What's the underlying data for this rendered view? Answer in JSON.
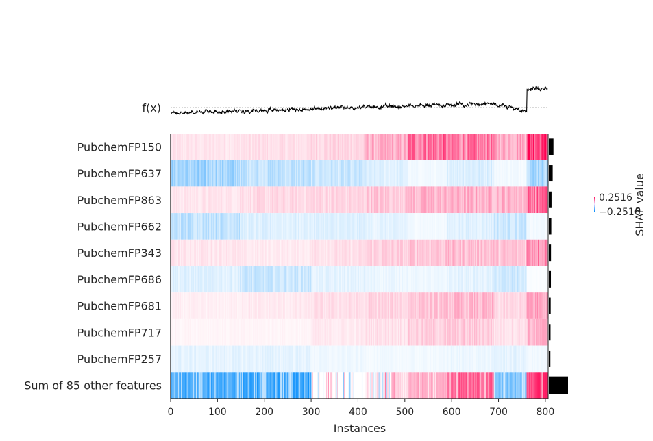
{
  "chart_data": {
    "type": "heatmap",
    "title": "",
    "xlabel": "Instances",
    "ylabel": "",
    "xlim": [
      0,
      806
    ],
    "xticks": [
      "0",
      "100",
      "200",
      "300",
      "400",
      "500",
      "600",
      "700",
      "800"
    ],
    "fx_label": "f(x)",
    "features": [
      "PubchemFP150",
      "PubchemFP637",
      "PubchemFP863",
      "PubchemFP662",
      "PubchemFP343",
      "PubchemFP686",
      "PubchemFP681",
      "PubchemFP717",
      "PubchemFP257",
      "Sum of 85 other features"
    ],
    "mean_abs_shap": [
      0.06,
      0.05,
      0.035,
      0.032,
      0.028,
      0.027,
      0.024,
      0.022,
      0.02,
      0.25
    ],
    "colorbar": {
      "label": "SHAP value",
      "max_label": "0.2516",
      "min_label": "−0.2516",
      "vmin": -0.2516,
      "vmax": 0.2516
    },
    "colors": {
      "positive": "#ff0051",
      "negative": "#008bfb",
      "line": "#000000",
      "baseline": "#999999"
    }
  }
}
